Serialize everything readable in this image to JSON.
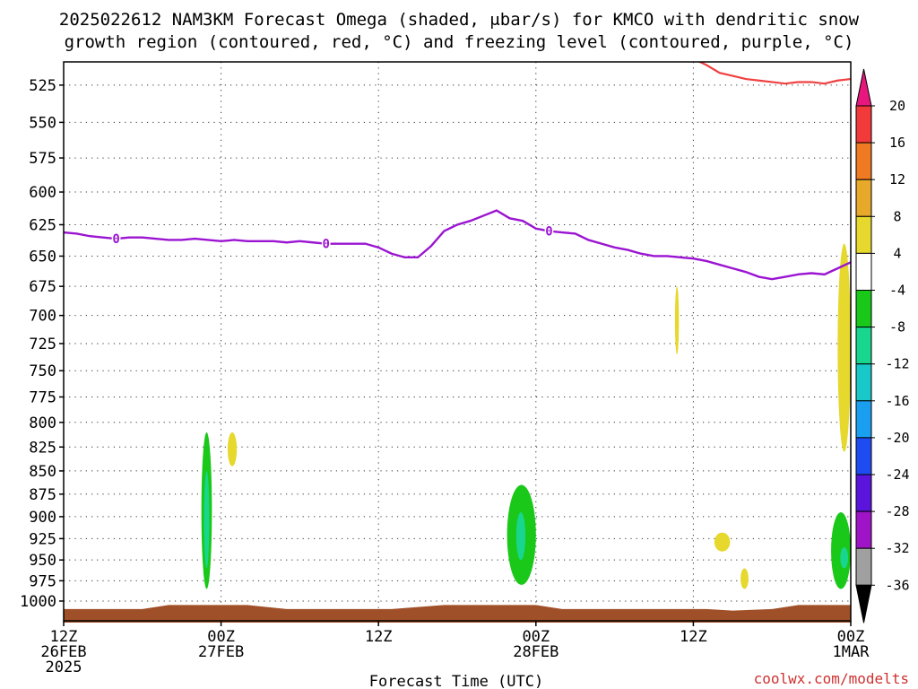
{
  "title_line1": "2025022612 NAM3KM Forecast Omega (shaded, μbar/s) for KMCO with dendritic snow",
  "title_line2": "growth region (contoured, red, °C) and freezing level (contoured, purple, °C)",
  "credit": "coolwx.com/modelts",
  "chart_data": {
    "type": "area",
    "title": "2025022612 NAM3KM Forecast Omega (shaded, μbar/s) for KMCO with dendritic snow growth region (contoured, red, °C) and freezing level (contoured, purple, °C)",
    "xlabel": "Forecast Time (UTC)",
    "ylabel": "",
    "x_range_hours": [
      0,
      60
    ],
    "y_range_hpa": [
      510,
      1025
    ],
    "y_scale": "log-pressure",
    "y_ticks": [
      "525",
      "550",
      "575",
      "600",
      "625",
      "650",
      "675",
      "700",
      "725",
      "750",
      "775",
      "800",
      "825",
      "850",
      "875",
      "900",
      "925",
      "950",
      "975",
      "1000"
    ],
    "x_ticks": [
      {
        "hour": 0,
        "line1": "12Z",
        "line2": "26FEB",
        "line3": "2025"
      },
      {
        "hour": 12,
        "line1": "00Z",
        "line2": "27FEB",
        "line3": ""
      },
      {
        "hour": 24,
        "line1": "12Z",
        "line2": "",
        "line3": ""
      },
      {
        "hour": 36,
        "line1": "00Z",
        "line2": "28FEB",
        "line3": ""
      },
      {
        "hour": 48,
        "line1": "12Z",
        "line2": "",
        "line3": ""
      },
      {
        "hour": 60,
        "line1": "00Z",
        "line2": "1MAR",
        "line3": ""
      }
    ],
    "grid": true,
    "colorbar": {
      "labels": [
        "20",
        "16",
        "12",
        "8",
        "4",
        "-4",
        "-8",
        "-12",
        "-16",
        "-20",
        "-24",
        "-28",
        "-32",
        "-36"
      ],
      "colors": [
        "#e8177d",
        "#f23a3a",
        "#ef7a22",
        "#e6a92a",
        "#e6d82c",
        "#ffffff",
        "#19c819",
        "#19d68f",
        "#19c8c8",
        "#1a9ef0",
        "#1e4cf0",
        "#5a14dc",
        "#a014c8",
        "#a0a0a0"
      ]
    },
    "freezing_level": {
      "name": "freezing level",
      "label": "0",
      "color": "#9b14d2",
      "x": [
        0,
        1,
        2,
        3,
        4,
        5,
        6,
        7,
        8,
        9,
        10,
        11,
        12,
        13,
        14,
        15,
        16,
        17,
        18,
        19,
        20,
        21,
        22,
        23,
        24,
        25,
        26,
        27,
        28,
        29,
        30,
        31,
        32,
        33,
        34,
        35,
        36,
        37,
        38,
        39,
        40,
        41,
        42,
        43,
        44,
        45,
        46,
        47,
        48,
        49,
        50,
        51,
        52,
        53,
        54,
        55,
        56,
        57,
        58,
        59,
        60
      ],
      "y": [
        631,
        632,
        634,
        635,
        636,
        635,
        635,
        636,
        637,
        637,
        636,
        637,
        638,
        637,
        638,
        638,
        638,
        639,
        638,
        639,
        640,
        640,
        640,
        640,
        643,
        648,
        651,
        651,
        642,
        630,
        625,
        622,
        618,
        614,
        620,
        622,
        628,
        630,
        631,
        632,
        637,
        640,
        643,
        645,
        648,
        650,
        650,
        651,
        652,
        654,
        657,
        660,
        663,
        667,
        669,
        667,
        665,
        664,
        665,
        660,
        655
      ],
      "label_x": [
        4,
        20,
        37
      ]
    },
    "dendritic_region": {
      "name": "dendritic snow growth region",
      "color": "#f04040",
      "x": [
        48,
        49,
        50,
        51,
        52,
        53,
        54,
        55,
        56,
        57,
        58,
        59,
        60
      ],
      "y": [
        508,
        512,
        517,
        519,
        521,
        522,
        523,
        524,
        523,
        523,
        524,
        522,
        521
      ]
    },
    "omega_areas": [
      {
        "value": "-4 to -8",
        "color": "#19c819",
        "x": [
          10.5,
          11.3
        ],
        "p": [
          810,
          985
        ]
      },
      {
        "value": "-8 to -12",
        "color": "#19d68f",
        "x": [
          10.7,
          11.1
        ],
        "p": [
          850,
          960
        ]
      },
      {
        "value": "4 to 8",
        "color": "#e6d82c",
        "x": [
          12.5,
          13.2
        ],
        "p": [
          810,
          845
        ]
      },
      {
        "value": "-4 to -8",
        "color": "#19c819",
        "x": [
          33.8,
          36.0
        ],
        "p": [
          865,
          980
        ]
      },
      {
        "value": "-8 to -12",
        "color": "#19d68f",
        "x": [
          34.5,
          35.2
        ],
        "p": [
          895,
          950
        ]
      },
      {
        "value": "4 to 8",
        "color": "#e6d82c",
        "x": [
          46.6,
          46.9
        ],
        "p": [
          675,
          735
        ]
      },
      {
        "value": "4 to 8",
        "color": "#e6d82c",
        "x": [
          49.6,
          50.8
        ],
        "p": [
          918,
          940
        ]
      },
      {
        "value": "4 to 8",
        "color": "#e6d82c",
        "x": [
          51.6,
          52.2
        ],
        "p": [
          960,
          985
        ]
      },
      {
        "value": "4 to 8",
        "color": "#e6d82c",
        "x": [
          59.0,
          60.0
        ],
        "p": [
          640,
          830
        ]
      },
      {
        "value": "-4 to -8",
        "color": "#19c819",
        "x": [
          58.5,
          60.0
        ],
        "p": [
          895,
          985
        ]
      },
      {
        "value": "-8 to -12",
        "color": "#19d68f",
        "x": [
          59.2,
          59.8
        ],
        "p": [
          935,
          960
        ]
      }
    ],
    "terrain": {
      "color": "#a05028",
      "x": [
        0,
        6,
        8,
        14,
        17,
        25,
        29,
        36,
        38,
        49,
        51,
        54,
        56,
        60
      ],
      "p": [
        1010,
        1010,
        1005,
        1005,
        1010,
        1010,
        1005,
        1005,
        1010,
        1010,
        1012,
        1010,
        1005,
        1005
      ]
    }
  }
}
